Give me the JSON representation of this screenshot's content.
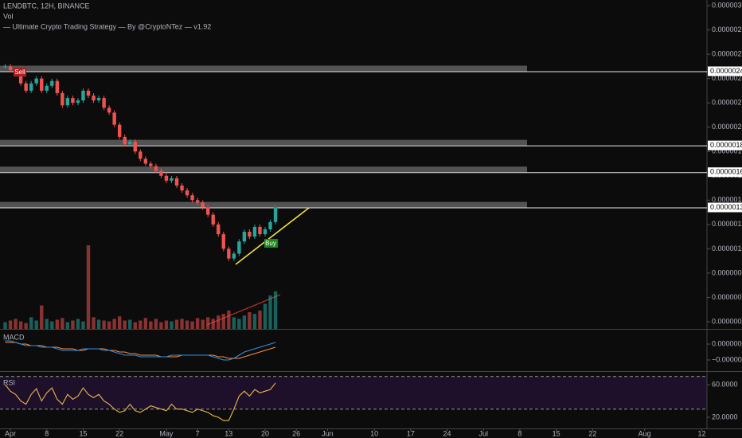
{
  "chart_data": {
    "type": "candlestick",
    "symbol": "LENDBTC, 12H, BINANCE",
    "volume_label": "Vol",
    "strategy_label": "— Ultimate Crypto Trading Strategy — By @CryptoNTez — v1.92",
    "macd_label": "MACD",
    "rsi_label": "RSI",
    "sell_label": "Sell",
    "buy_label": "Buy",
    "up_color": "#26a69a",
    "down_color": "#ef5350",
    "xlim": [
      -2,
      134
    ],
    "xticks": [
      {
        "value": 0,
        "label": "Apr"
      },
      {
        "value": 7,
        "label": "8"
      },
      {
        "value": 14,
        "label": "15"
      },
      {
        "value": 21,
        "label": "22"
      },
      {
        "value": 30,
        "label": "May"
      },
      {
        "value": 36,
        "label": "7"
      },
      {
        "value": 42,
        "label": "13"
      },
      {
        "value": 49,
        "label": "20"
      },
      {
        "value": 55,
        "label": "26"
      },
      {
        "value": 61,
        "label": "Jun"
      },
      {
        "value": 70,
        "label": "10"
      },
      {
        "value": 77,
        "label": "17"
      },
      {
        "value": 84,
        "label": "24"
      },
      {
        "value": 91,
        "label": "Jul"
      },
      {
        "value": 98,
        "label": "8"
      },
      {
        "value": 105,
        "label": "15"
      },
      {
        "value": 112,
        "label": "22"
      },
      {
        "value": 122,
        "label": "Aug"
      },
      {
        "value": 133,
        "label": "12"
      }
    ],
    "ylim": [
      3.41e-07,
      3.046e-06
    ],
    "yticks": [
      {
        "value": 3e-06,
        "label": "0.00000300"
      },
      {
        "value": 2.8e-06,
        "label": "0.00000280"
      },
      {
        "value": 2.6e-06,
        "label": "0.00000260"
      },
      {
        "value": 2.4e-06,
        "label": "0.00000240"
      },
      {
        "value": 2.2e-06,
        "label": "0.00000220"
      },
      {
        "value": 2e-06,
        "label": "0.00000200"
      },
      {
        "value": 1.8e-06,
        "label": "0.00000180"
      },
      {
        "value": 1.6e-06,
        "label": "0.00000160"
      },
      {
        "value": 1.4e-06,
        "label": "0.00000140"
      },
      {
        "value": 1.2e-06,
        "label": "0.00000120"
      },
      {
        "value": 1e-06,
        "label": "0.00000100"
      },
      {
        "value": 8e-07,
        "label": "0.00000080"
      },
      {
        "value": 6e-07,
        "label": "0.00000060"
      },
      {
        "value": 4e-07,
        "label": "0.00000040"
      }
    ],
    "levels": [
      {
        "value": 2.46e-06,
        "label": "0.00000246"
      },
      {
        "value": 1.85e-06,
        "label": "0.00000185"
      },
      {
        "value": 1.63e-06,
        "label": "0.00000163"
      },
      {
        "value": 1.34e-06,
        "label": "0.00000134"
      }
    ],
    "x": [
      -1,
      0,
      1,
      2,
      3,
      4,
      5,
      6,
      7,
      8,
      9,
      10,
      11,
      12,
      13,
      14,
      15,
      16,
      17,
      18,
      19,
      20,
      21,
      22,
      23,
      24,
      25,
      26,
      27,
      28,
      29,
      30,
      31,
      32,
      33,
      34,
      35,
      36,
      37,
      38,
      39,
      40,
      41,
      42,
      43,
      44,
      45,
      46,
      47,
      48,
      49,
      50,
      51
    ],
    "close": [
      2.5e-06,
      2.47e-06,
      2.44e-06,
      2.36e-06,
      2.3e-06,
      2.36e-06,
      2.4e-06,
      2.3e-06,
      2.34e-06,
      2.38e-06,
      2.28e-06,
      2.18e-06,
      2.24e-06,
      2.2e-06,
      2.22e-06,
      2.3e-06,
      2.26e-06,
      2.22e-06,
      2.24e-06,
      2.16e-06,
      2.12e-06,
      2.02e-06,
      1.92e-06,
      1.86e-06,
      1.88e-06,
      1.8e-06,
      1.74e-06,
      1.7e-06,
      1.68e-06,
      1.64e-06,
      1.6e-06,
      1.56e-06,
      1.58e-06,
      1.52e-06,
      1.48e-06,
      1.44e-06,
      1.4e-06,
      1.38e-06,
      1.34e-06,
      1.28e-06,
      1.2e-06,
      1.12e-06,
      1e-06,
      9.2e-07,
      9.6e-07,
      1.06e-06,
      1.14e-06,
      1.1e-06,
      1.18e-06,
      1.12e-06,
      1.16e-06,
      1.22e-06,
      1.34e-06
    ],
    "volume": [
      8,
      10,
      12,
      9,
      7,
      14,
      10,
      28,
      12,
      9,
      11,
      13,
      8,
      10,
      12,
      9,
      100,
      14,
      11,
      10,
      9,
      12,
      15,
      10,
      11,
      8,
      10,
      13,
      9,
      12,
      8,
      10,
      9,
      11,
      12,
      10,
      9,
      13,
      11,
      14,
      12,
      16,
      18,
      22,
      14,
      12,
      16,
      20,
      18,
      22,
      30,
      40,
      45
    ],
    "macd_ylim": [
      -1.65e-07,
      8.5e-08
    ],
    "macd_yticks": [
      {
        "value": 0,
        "label": "0.00000000"
      },
      {
        "value": -1e-07,
        "label": "−0.00000010"
      }
    ],
    "macd": [
      2e-08,
      2e-08,
      1e-08,
      0,
      -1e-08,
      -1e-08,
      -1e-08,
      -2e-08,
      -2e-08,
      -2e-08,
      -3e-08,
      -4e-08,
      -4e-08,
      -4e-08,
      -4e-08,
      -3e-08,
      -3e-08,
      -3e-08,
      -3e-08,
      -4e-08,
      -4e-08,
      -5e-08,
      -6e-08,
      -7e-08,
      -7e-08,
      -7e-08,
      -8e-08,
      -8e-08,
      -8e-08,
      -8e-08,
      -8e-08,
      -8e-08,
      -7e-08,
      -7e-08,
      -7e-08,
      -7e-08,
      -7e-08,
      -7e-08,
      -7e-08,
      -7e-08,
      -8e-08,
      -9e-08,
      -1e-07,
      -1e-07,
      -9e-08,
      -7e-08,
      -5e-08,
      -4e-08,
      -3e-08,
      -2e-08,
      -1e-08,
      0,
      1e-08
    ],
    "signal": [
      1e-08,
      1e-08,
      1e-08,
      0,
      0,
      -1e-08,
      -1e-08,
      -1e-08,
      -2e-08,
      -2e-08,
      -2e-08,
      -3e-08,
      -3e-08,
      -3e-08,
      -4e-08,
      -4e-08,
      -3e-08,
      -3e-08,
      -3e-08,
      -3e-08,
      -4e-08,
      -4e-08,
      -5e-08,
      -5e-08,
      -6e-08,
      -6e-08,
      -7e-08,
      -7e-08,
      -7e-08,
      -7e-08,
      -8e-08,
      -8e-08,
      -8e-08,
      -8e-08,
      -7e-08,
      -7e-08,
      -7e-08,
      -7e-08,
      -7e-08,
      -7e-08,
      -7e-08,
      -8e-08,
      -8e-08,
      -9e-08,
      -9e-08,
      -9e-08,
      -8e-08,
      -7e-08,
      -6e-08,
      -5e-08,
      -4e-08,
      -3e-08,
      -2e-08
    ],
    "rsi_ylim": [
      7.3,
      75.6
    ],
    "rsi_yticks": [
      {
        "value": 60,
        "label": "60.0000"
      },
      {
        "value": 20,
        "label": "20.0000"
      }
    ],
    "rsi_bands": [
      70,
      30
    ],
    "rsi": [
      60,
      52,
      48,
      40,
      36,
      48,
      55,
      40,
      50,
      56,
      42,
      36,
      48,
      42,
      46,
      56,
      48,
      44,
      48,
      40,
      36,
      30,
      26,
      28,
      36,
      28,
      26,
      30,
      34,
      32,
      30,
      28,
      36,
      30,
      30,
      28,
      26,
      30,
      28,
      26,
      22,
      20,
      16,
      16,
      30,
      46,
      52,
      46,
      54,
      50,
      52,
      54,
      62
    ]
  }
}
